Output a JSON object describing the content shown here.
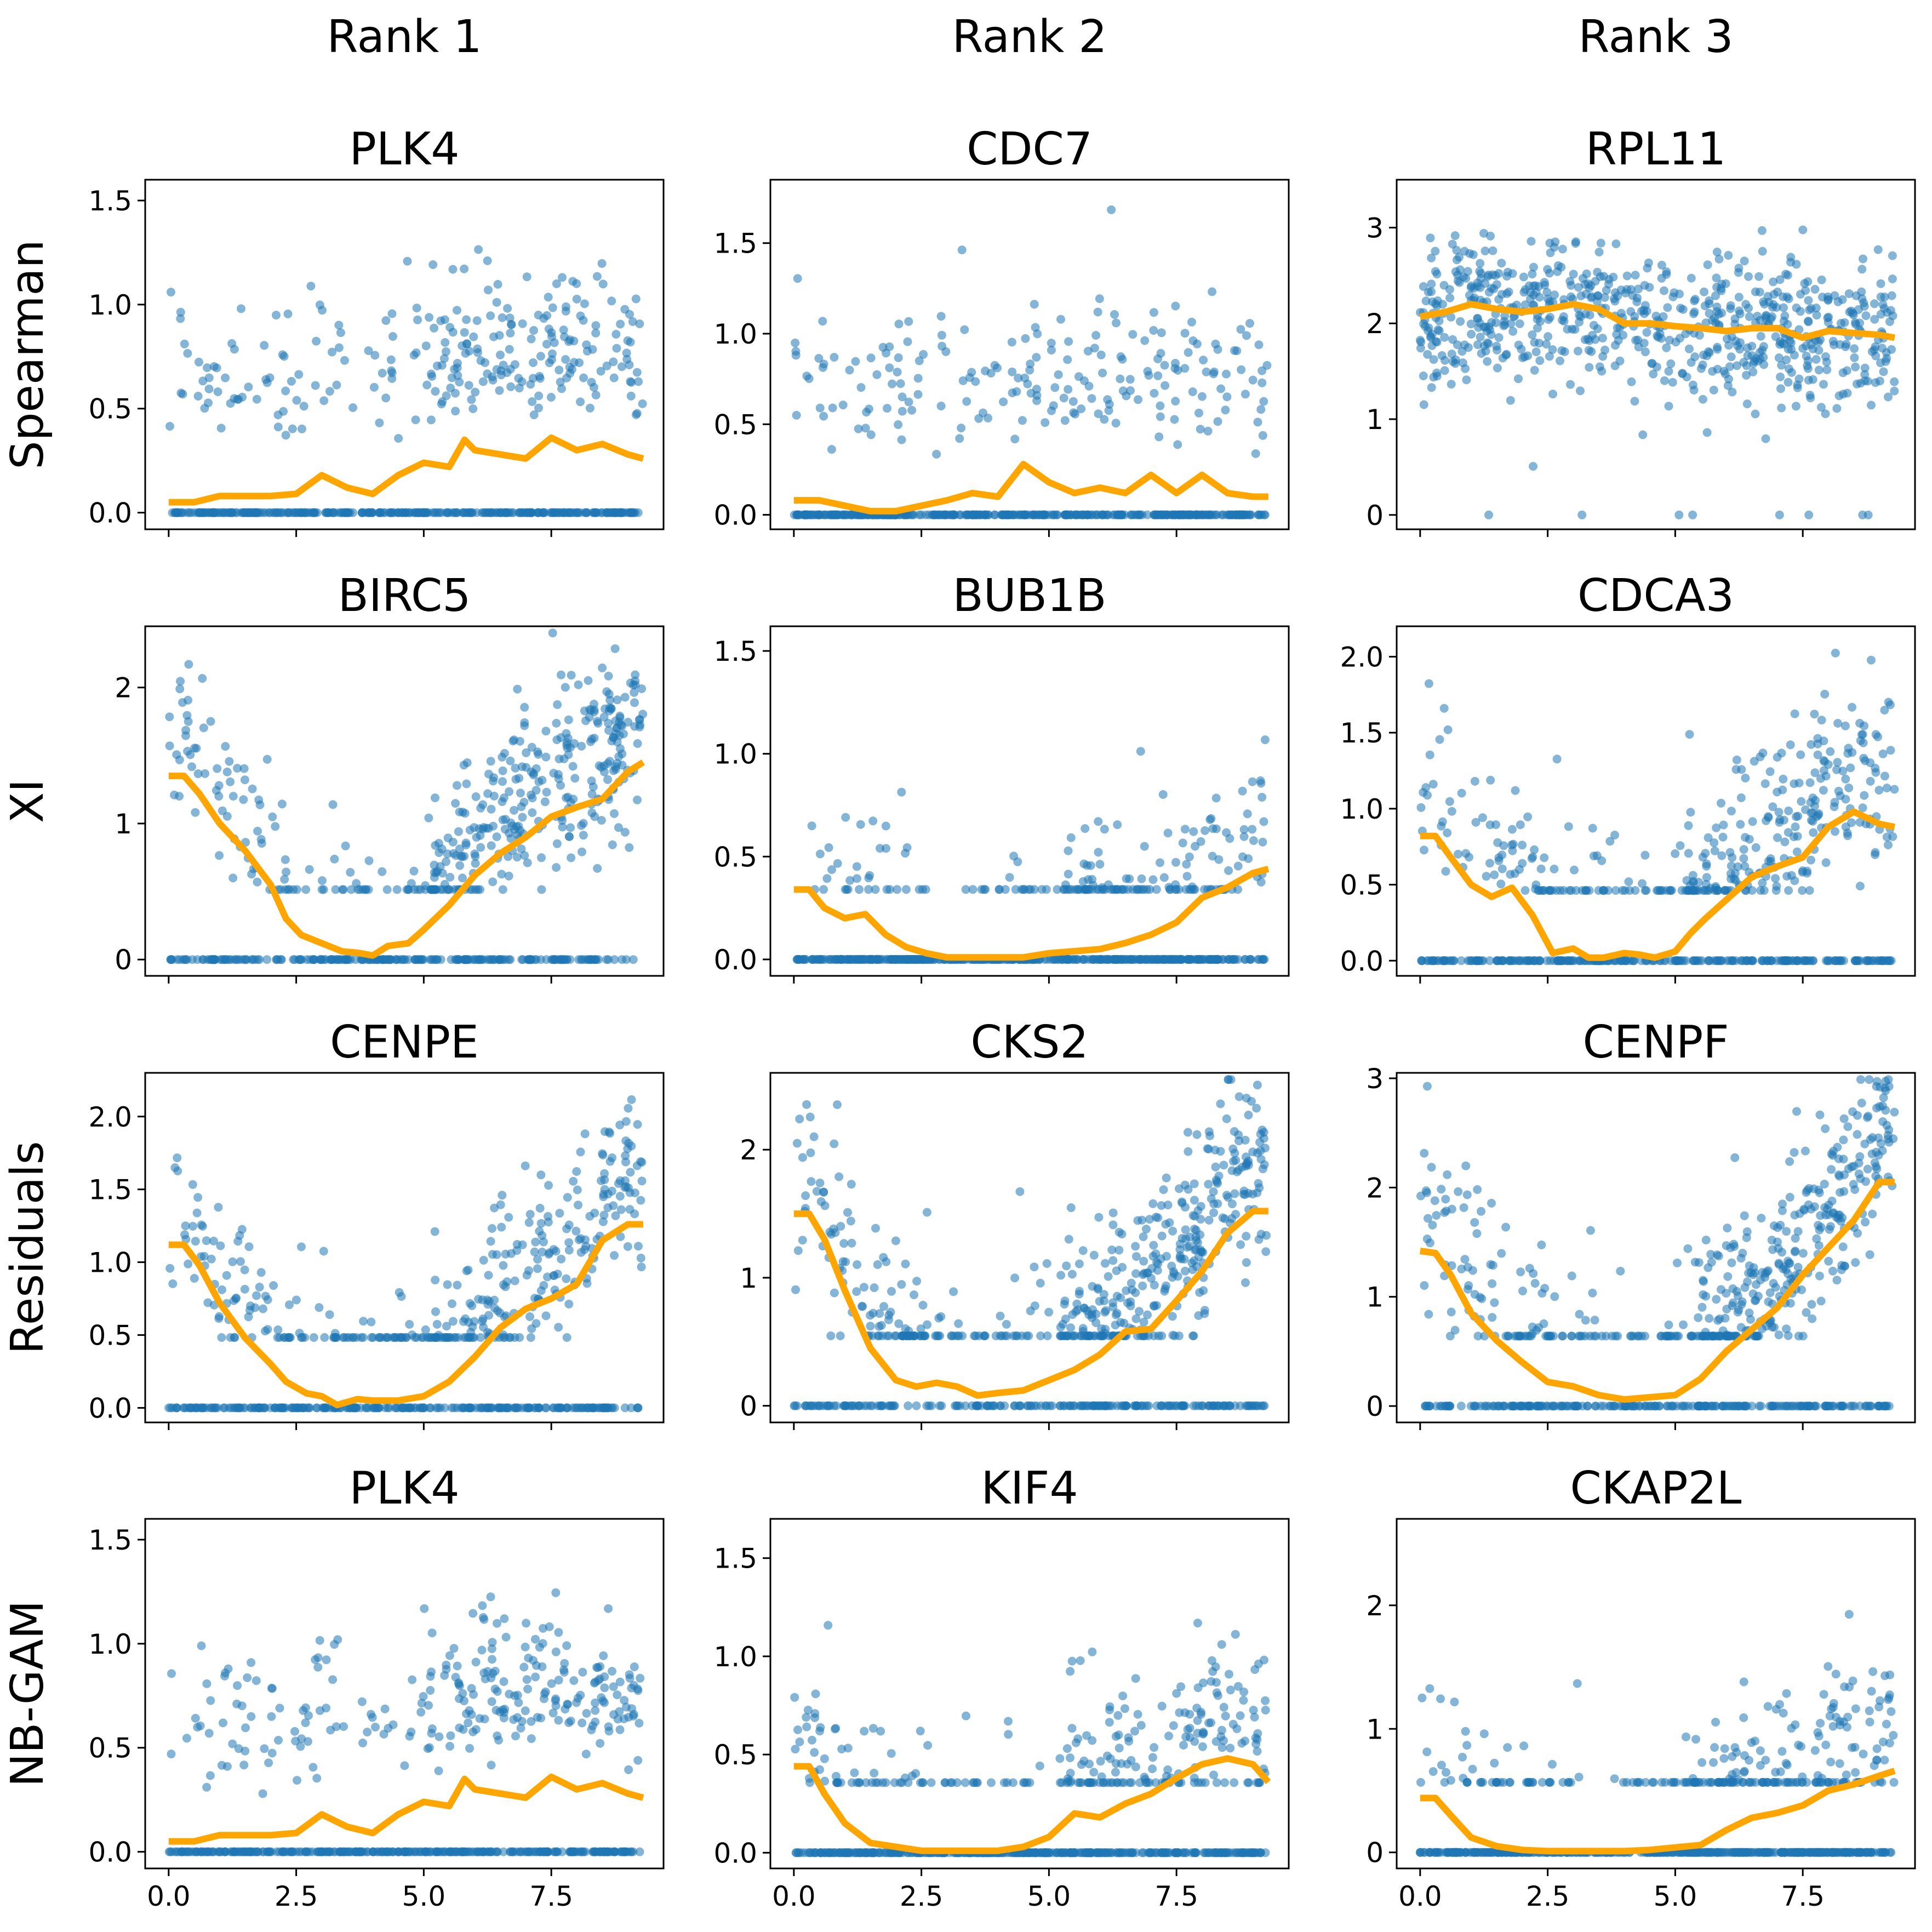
{
  "figure": {
    "column_headers": [
      "Rank 1",
      "Rank 2",
      "Rank 3"
    ],
    "row_labels": [
      "Spearman",
      "XI",
      "Residuals",
      "NB-GAM"
    ],
    "x_ticks": [
      0.0,
      2.5,
      5.0,
      7.5
    ],
    "x_tick_labels": [
      "0.0",
      "2.5",
      "5.0",
      "7.5"
    ],
    "point_color": "#1f77b4",
    "curve_color": "#ffa500"
  },
  "chart_data": [
    {
      "type": "scatter",
      "title": "PLK4",
      "row": 0,
      "col": 0,
      "xlim": [
        -0.46,
        9.7
      ],
      "ylim": [
        -0.08,
        1.6
      ],
      "yticks": [
        0.0,
        0.5,
        1.0,
        1.5
      ],
      "ytick_labels": [
        "0.0",
        "0.5",
        "1.0",
        "1.5"
      ],
      "curve": {
        "x": [
          0.0,
          0.5,
          1.0,
          1.5,
          2.0,
          2.5,
          3.0,
          3.5,
          4.0,
          4.5,
          5.0,
          5.5,
          5.8,
          6.0,
          6.5,
          7.0,
          7.5,
          8.0,
          8.5,
          9.0,
          9.3
        ],
        "y": [
          0.05,
          0.05,
          0.08,
          0.08,
          0.08,
          0.09,
          0.18,
          0.12,
          0.09,
          0.18,
          0.24,
          0.22,
          0.35,
          0.3,
          0.28,
          0.26,
          0.36,
          0.3,
          0.33,
          0.28,
          0.26
        ]
      },
      "scatter": {
        "pattern": "upward",
        "nonzero_points": 260,
        "zero_points": 340
      }
    },
    {
      "type": "scatter",
      "title": "CDC7",
      "row": 0,
      "col": 1,
      "xlim": [
        -0.46,
        9.7
      ],
      "ylim": [
        -0.08,
        1.85
      ],
      "yticks": [
        0.0,
        0.5,
        1.0,
        1.5
      ],
      "ytick_labels": [
        "0.0",
        "0.5",
        "1.0",
        "1.5"
      ],
      "curve": {
        "x": [
          0.0,
          0.5,
          1.0,
          1.5,
          2.0,
          2.5,
          3.0,
          3.5,
          4.0,
          4.5,
          5.0,
          5.5,
          6.0,
          6.5,
          7.0,
          7.5,
          8.0,
          8.5,
          9.0,
          9.3
        ],
        "y": [
          0.08,
          0.08,
          0.05,
          0.02,
          0.02,
          0.05,
          0.08,
          0.12,
          0.1,
          0.28,
          0.18,
          0.12,
          0.15,
          0.12,
          0.22,
          0.12,
          0.22,
          0.12,
          0.1,
          0.1
        ]
      },
      "scatter": {
        "pattern": "hump",
        "nonzero_points": 200,
        "zero_points": 400
      }
    },
    {
      "type": "scatter",
      "title": "RPL11",
      "row": 0,
      "col": 2,
      "xlim": [
        -0.46,
        9.7
      ],
      "ylim": [
        -0.15,
        3.5
      ],
      "yticks": [
        0,
        1,
        2,
        3
      ],
      "ytick_labels": [
        "0",
        "1",
        "2",
        "3"
      ],
      "curve": {
        "x": [
          0.0,
          0.5,
          1.0,
          1.5,
          2.0,
          2.5,
          3.0,
          3.5,
          4.0,
          4.5,
          5.0,
          5.5,
          6.0,
          6.5,
          7.0,
          7.5,
          8.0,
          8.5,
          9.0,
          9.3
        ],
        "y": [
          2.07,
          2.12,
          2.2,
          2.15,
          2.12,
          2.15,
          2.2,
          2.15,
          2.0,
          2.0,
          1.97,
          1.95,
          1.92,
          1.95,
          1.95,
          1.85,
          1.92,
          1.9,
          1.88,
          1.85
        ]
      },
      "scatter": {
        "pattern": "dense_flat",
        "nonzero_points": 700,
        "zero_points": 8
      }
    },
    {
      "type": "scatter",
      "title": "BIRC5",
      "row": 1,
      "col": 0,
      "xlim": [
        -0.46,
        9.7
      ],
      "ylim": [
        -0.12,
        2.45
      ],
      "yticks": [
        0,
        1,
        2
      ],
      "ytick_labels": [
        "0",
        "1",
        "2"
      ],
      "curve": {
        "x": [
          0.0,
          0.3,
          0.6,
          1.0,
          1.5,
          2.0,
          2.3,
          2.6,
          3.0,
          3.4,
          3.7,
          4.0,
          4.3,
          4.7,
          5.0,
          5.5,
          6.0,
          6.5,
          7.0,
          7.5,
          8.0,
          8.5,
          9.0,
          9.3
        ],
        "y": [
          1.35,
          1.35,
          1.22,
          1.0,
          0.8,
          0.55,
          0.3,
          0.18,
          0.12,
          0.06,
          0.05,
          0.03,
          0.1,
          0.12,
          0.22,
          0.4,
          0.62,
          0.78,
          0.9,
          1.05,
          1.12,
          1.18,
          1.38,
          1.45
        ]
      },
      "scatter": {
        "pattern": "u",
        "nonzero_points": 420,
        "zero_points": 230
      }
    },
    {
      "type": "scatter",
      "title": "BUB1B",
      "row": 1,
      "col": 1,
      "xlim": [
        -0.46,
        9.7
      ],
      "ylim": [
        -0.08,
        1.62
      ],
      "yticks": [
        0.0,
        0.5,
        1.0,
        1.5
      ],
      "ytick_labels": [
        "0.0",
        "0.5",
        "1.0",
        "1.5"
      ],
      "curve": {
        "x": [
          0.0,
          0.3,
          0.6,
          1.0,
          1.4,
          1.8,
          2.2,
          2.6,
          3.0,
          3.5,
          4.0,
          4.5,
          5.0,
          5.5,
          6.0,
          6.5,
          7.0,
          7.5,
          8.0,
          8.5,
          9.0,
          9.3
        ],
        "y": [
          0.34,
          0.34,
          0.25,
          0.2,
          0.22,
          0.12,
          0.06,
          0.03,
          0.01,
          0.01,
          0.01,
          0.01,
          0.03,
          0.04,
          0.05,
          0.08,
          0.12,
          0.18,
          0.3,
          0.35,
          0.42,
          0.44
        ]
      },
      "scatter": {
        "pattern": "u",
        "nonzero_points": 190,
        "zero_points": 420
      }
    },
    {
      "type": "scatter",
      "title": "CDCA3",
      "row": 1,
      "col": 2,
      "xlim": [
        -0.46,
        9.7
      ],
      "ylim": [
        -0.1,
        2.2
      ],
      "yticks": [
        0.0,
        0.5,
        1.0,
        1.5,
        2.0
      ],
      "ytick_labels": [
        "0.0",
        "0.5",
        "1.0",
        "1.5",
        "2.0"
      ],
      "curve": {
        "x": [
          0.0,
          0.3,
          0.6,
          1.0,
          1.4,
          1.8,
          2.2,
          2.6,
          3.0,
          3.3,
          3.6,
          4.0,
          4.3,
          4.6,
          5.0,
          5.3,
          5.6,
          6.0,
          6.5,
          7.0,
          7.5,
          8.0,
          8.5,
          9.0,
          9.3
        ],
        "y": [
          0.82,
          0.82,
          0.68,
          0.5,
          0.42,
          0.48,
          0.3,
          0.05,
          0.08,
          0.02,
          0.02,
          0.05,
          0.04,
          0.02,
          0.06,
          0.18,
          0.28,
          0.4,
          0.55,
          0.62,
          0.68,
          0.88,
          0.98,
          0.9,
          0.88
        ]
      },
      "scatter": {
        "pattern": "u",
        "nonzero_points": 360,
        "zero_points": 260
      }
    },
    {
      "type": "scatter",
      "title": "CENPE",
      "row": 2,
      "col": 0,
      "xlim": [
        -0.46,
        9.7
      ],
      "ylim": [
        -0.1,
        2.3
      ],
      "yticks": [
        0.0,
        0.5,
        1.0,
        1.5,
        2.0
      ],
      "ytick_labels": [
        "0.0",
        "0.5",
        "1.0",
        "1.5",
        "2.0"
      ],
      "curve": {
        "x": [
          0.0,
          0.3,
          0.6,
          1.0,
          1.5,
          2.0,
          2.3,
          2.7,
          3.0,
          3.3,
          3.7,
          4.0,
          4.5,
          5.0,
          5.5,
          6.0,
          6.5,
          7.0,
          7.5,
          8.0,
          8.5,
          9.0,
          9.3
        ],
        "y": [
          1.12,
          1.12,
          0.98,
          0.72,
          0.48,
          0.3,
          0.18,
          0.1,
          0.08,
          0.02,
          0.06,
          0.05,
          0.05,
          0.08,
          0.18,
          0.35,
          0.55,
          0.68,
          0.75,
          0.85,
          1.15,
          1.26,
          1.26
        ]
      },
      "scatter": {
        "pattern": "u",
        "nonzero_points": 360,
        "zero_points": 260
      }
    },
    {
      "type": "scatter",
      "title": "CKS2",
      "row": 2,
      "col": 1,
      "xlim": [
        -0.46,
        9.7
      ],
      "ylim": [
        -0.13,
        2.6
      ],
      "yticks": [
        0,
        1,
        2
      ],
      "ytick_labels": [
        "0",
        "1",
        "2"
      ],
      "curve": {
        "x": [
          0.0,
          0.3,
          0.6,
          1.0,
          1.5,
          2.0,
          2.4,
          2.8,
          3.2,
          3.6,
          4.0,
          4.5,
          5.0,
          5.5,
          6.0,
          6.5,
          7.0,
          7.5,
          8.0,
          8.5,
          9.0,
          9.3
        ],
        "y": [
          1.5,
          1.5,
          1.3,
          0.9,
          0.45,
          0.2,
          0.15,
          0.18,
          0.15,
          0.08,
          0.1,
          0.12,
          0.2,
          0.28,
          0.4,
          0.58,
          0.6,
          0.82,
          1.05,
          1.35,
          1.52,
          1.52
        ]
      },
      "scatter": {
        "pattern": "u",
        "nonzero_points": 480,
        "zero_points": 200
      }
    },
    {
      "type": "scatter",
      "title": "CENPF",
      "row": 2,
      "col": 2,
      "xlim": [
        -0.46,
        9.7
      ],
      "ylim": [
        -0.15,
        3.05
      ],
      "yticks": [
        0,
        1,
        2,
        3
      ],
      "ytick_labels": [
        "0",
        "1",
        "2",
        "3"
      ],
      "curve": {
        "x": [
          0.0,
          0.3,
          0.6,
          1.0,
          1.5,
          2.0,
          2.5,
          3.0,
          3.5,
          4.0,
          4.5,
          5.0,
          5.5,
          6.0,
          6.5,
          7.0,
          7.5,
          8.0,
          8.5,
          9.0,
          9.3
        ],
        "y": [
          1.42,
          1.4,
          1.2,
          0.85,
          0.6,
          0.4,
          0.22,
          0.18,
          0.1,
          0.06,
          0.08,
          0.1,
          0.25,
          0.5,
          0.7,
          0.9,
          1.2,
          1.45,
          1.7,
          2.05,
          2.05
        ]
      },
      "scatter": {
        "pattern": "u",
        "nonzero_points": 460,
        "zero_points": 230
      }
    },
    {
      "type": "scatter",
      "title": "PLK4",
      "row": 3,
      "col": 0,
      "xlim": [
        -0.46,
        9.7
      ],
      "ylim": [
        -0.08,
        1.6
      ],
      "yticks": [
        0.0,
        0.5,
        1.0,
        1.5
      ],
      "ytick_labels": [
        "0.0",
        "0.5",
        "1.0",
        "1.5"
      ],
      "curve": {
        "x": [
          0.0,
          0.5,
          1.0,
          1.5,
          2.0,
          2.5,
          3.0,
          3.5,
          4.0,
          4.5,
          5.0,
          5.5,
          5.8,
          6.0,
          6.5,
          7.0,
          7.5,
          8.0,
          8.5,
          9.0,
          9.3
        ],
        "y": [
          0.05,
          0.05,
          0.08,
          0.08,
          0.08,
          0.09,
          0.18,
          0.12,
          0.09,
          0.18,
          0.24,
          0.22,
          0.35,
          0.3,
          0.28,
          0.26,
          0.36,
          0.3,
          0.33,
          0.28,
          0.26
        ]
      },
      "scatter": {
        "pattern": "upward",
        "nonzero_points": 260,
        "zero_points": 340
      }
    },
    {
      "type": "scatter",
      "title": "KIF4",
      "row": 3,
      "col": 1,
      "xlim": [
        -0.46,
        9.7
      ],
      "ylim": [
        -0.08,
        1.7
      ],
      "yticks": [
        0.0,
        0.5,
        1.0,
        1.5
      ],
      "ytick_labels": [
        "0.0",
        "0.5",
        "1.0",
        "1.5"
      ],
      "curve": {
        "x": [
          0.0,
          0.3,
          0.6,
          1.0,
          1.5,
          2.0,
          2.5,
          3.0,
          3.5,
          4.0,
          4.5,
          5.0,
          5.5,
          6.0,
          6.5,
          7.0,
          7.5,
          8.0,
          8.5,
          9.0,
          9.3
        ],
        "y": [
          0.44,
          0.44,
          0.3,
          0.15,
          0.05,
          0.03,
          0.01,
          0.01,
          0.01,
          0.01,
          0.03,
          0.08,
          0.2,
          0.18,
          0.25,
          0.3,
          0.38,
          0.45,
          0.48,
          0.45,
          0.36
        ]
      },
      "scatter": {
        "pattern": "u",
        "nonzero_points": 260,
        "zero_points": 380
      }
    },
    {
      "type": "scatter",
      "title": "CKAP2L",
      "row": 3,
      "col": 2,
      "xlim": [
        -0.46,
        9.7
      ],
      "ylim": [
        -0.13,
        2.7
      ],
      "yticks": [
        0,
        1,
        2
      ],
      "ytick_labels": [
        "0",
        "1",
        "2"
      ],
      "curve": {
        "x": [
          0.0,
          0.3,
          0.6,
          1.0,
          1.5,
          2.0,
          2.5,
          3.0,
          3.5,
          4.0,
          4.5,
          5.0,
          5.5,
          6.0,
          6.5,
          7.0,
          7.5,
          8.0,
          8.5,
          9.0,
          9.3
        ],
        "y": [
          0.44,
          0.44,
          0.3,
          0.12,
          0.05,
          0.02,
          0.01,
          0.01,
          0.01,
          0.01,
          0.02,
          0.04,
          0.06,
          0.18,
          0.28,
          0.32,
          0.38,
          0.5,
          0.55,
          0.62,
          0.66
        ]
      },
      "scatter": {
        "pattern": "u",
        "nonzero_points": 250,
        "zero_points": 420
      }
    }
  ]
}
